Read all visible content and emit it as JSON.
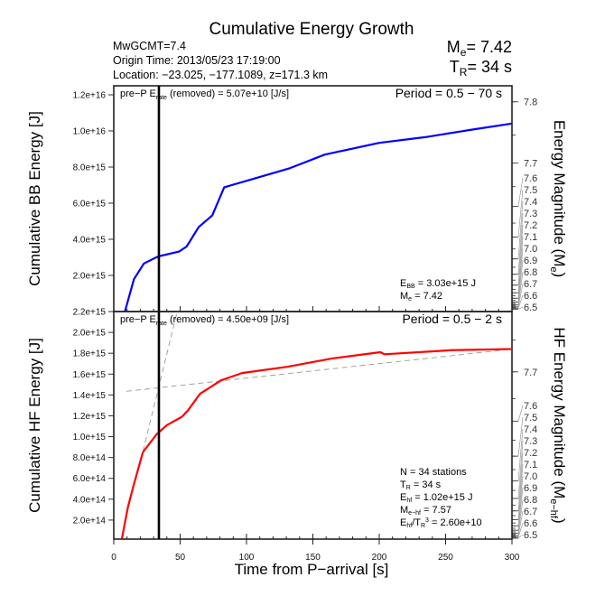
{
  "title": "Cumulative Energy Growth",
  "info": {
    "line1": "MwGCMT=7.4",
    "line2": "Origin Time: 2013/05/23 17:19:00",
    "line3": "Location: −23.025, −177.1089, z=171.3 km"
  },
  "summary": {
    "me_sym": "M",
    "me_sub": "e",
    "me_val": "= 7.42",
    "tr_sym": "T",
    "tr_sub": "R",
    "tr_val": "= 34 s"
  },
  "xlabel": "Time from P−arrival [s]",
  "chart_data": [
    {
      "type": "line",
      "panel": "top",
      "ylabel": "Cumulative BB Energy [J]",
      "ylabel_right": "Energy Magnitude (M",
      "ylabel_right_sub": "e",
      "ylabel_right_end": ")",
      "xlim": [
        0,
        300
      ],
      "ylim": [
        0,
        1.25e+16
      ],
      "xticks": [
        0,
        50,
        100,
        150,
        200,
        250,
        300
      ],
      "yticks": [
        2000000000000000.0,
        4000000000000000.0,
        6000000000000000.0,
        8000000000000000.0,
        1e+16,
        1.2e+16
      ],
      "ytick_labels": [
        "2.0e+15",
        "4.0e+15",
        "6.0e+15",
        "8.0e+15",
        "1.0e+16",
        "1.2e+16"
      ],
      "right_ticks": [
        7.8,
        7.7,
        7.6,
        7.5,
        7.4,
        7.3,
        7.2,
        7.1,
        7.0,
        6.9,
        6.8,
        6.7,
        6.6,
        6.5
      ],
      "right_tick_labels": [
        "7.8",
        "7.7",
        "7.6",
        "7.5",
        "7.4",
        "7.3",
        "7.2",
        "7.1",
        "7.0",
        "6.9",
        "6.8",
        "6.7",
        "6.6",
        "6.5"
      ],
      "color": "#0000ff",
      "x": [
        8.4,
        15.2,
        22.7,
        33.4,
        49.2,
        54.9,
        64,
        74.2,
        83.2,
        102.5,
        132,
        159,
        200,
        236,
        268,
        300
      ],
      "y": [
        0,
        1790000000000000.0,
        2660000000000000.0,
        3050000000000000.0,
        3320000000000000.0,
        3600000000000000.0,
        4680000000000000.0,
        5320000000000000.0,
        6880000000000000.0,
        7290000000000000.0,
        7920000000000000.0,
        8690000000000000.0,
        9340000000000000.0,
        9670000000000000.0,
        1.005e+16,
        1.041e+16
      ],
      "vline_x": 34,
      "annot_top_left": {
        "pre": "pre−P E",
        "sub": "rate",
        "post": " (removed) = 5.07e+10 [J/s]"
      },
      "period": "Period = 0.5 − 70 s",
      "stats": [
        {
          "pre": "E",
          "sub": "BB",
          "post": " = 3.03e+15 J"
        },
        {
          "pre": "M",
          "sub": "e",
          "post": " = 7.42"
        }
      ]
    },
    {
      "type": "line",
      "panel": "bottom",
      "ylabel": "Cumulative HF Energy [J]",
      "ylabel_right": "HF Energy Magnitude (M",
      "ylabel_right_sub": "e−hf",
      "ylabel_right_end": ")",
      "xlim": [
        0,
        300
      ],
      "ylim": [
        0,
        2200000000000000.0
      ],
      "xticks": [
        0,
        50,
        100,
        150,
        200,
        250,
        300
      ],
      "xtick_labels": [
        "0",
        "50",
        "100",
        "150",
        "200",
        "250",
        "300"
      ],
      "yticks": [
        200000000000000.0,
        400000000000000.0,
        600000000000000.0,
        800000000000000.0,
        1000000000000000.0,
        1200000000000000.0,
        1400000000000000.0,
        1600000000000000.0,
        1800000000000000.0,
        2000000000000000.0,
        2200000000000000.0
      ],
      "ytick_labels": [
        "2.0e+14",
        "4.0e+14",
        "6.0e+14",
        "8.0e+14",
        "1.0e+15",
        "1.2e+15",
        "1.4e+15",
        "1.6e+15",
        "1.8e+15",
        "2.0e+15",
        "2.2e+15"
      ],
      "right_ticks": [
        7.7,
        7.6,
        7.5,
        7.4,
        7.3,
        7.2,
        7.1,
        7.0,
        6.9,
        6.8,
        6.7,
        6.6,
        6.5
      ],
      "right_tick_labels": [
        "7.7",
        "7.6",
        "7.5",
        "7.4",
        "7.3",
        "7.2",
        "7.1",
        "7.0",
        "6.9",
        "6.8",
        "6.7",
        "6.6",
        "6.5"
      ],
      "color": "#ff0000",
      "x": [
        6.1,
        10.6,
        15.1,
        21.9,
        32.1,
        40,
        51.3,
        55.8,
        64.9,
        80.8,
        96.6,
        130.6,
        164.6,
        200.9,
        204,
        255,
        298,
        300
      ],
      "y": [
        20000000000000.0,
        320000000000000.0,
        540000000000000.0,
        850000000000000.0,
        1020000000000000.0,
        1110000000000000.0,
        1190000000000000.0,
        1250000000000000.0,
        1410000000000000.0,
        1540000000000000.0,
        1610000000000000.0,
        1670000000000000.0,
        1750000000000000.0,
        1810000000000000.0,
        1790000000000000.0,
        1830000000000000.0,
        1840000000000000.0,
        1840000000000000.0
      ],
      "fit_lines": [
        {
          "x": [
            9.5,
            300
          ],
          "y": [
            1435000000000000.0,
            1840000000000000.0
          ]
        },
        {
          "x": [
            22,
            48
          ],
          "y": [
            860000000000000.0,
            2210000000000000.0
          ]
        }
      ],
      "vline_x": 34,
      "annot_top_left": {
        "pre": "pre−P E",
        "sub": "rate",
        "post": " (removed) = 4.50e+09 [J/s]"
      },
      "period": "Period = 0.5 − 2 s",
      "stats": [
        {
          "pre": "N = 34 stations",
          "sub": "",
          "post": ""
        },
        {
          "pre": "T",
          "sub": "R",
          "post": " = 34  s"
        },
        {
          "pre": "E",
          "sub": "hf",
          "post": " = 1.02e+15 J"
        },
        {
          "pre": "M",
          "sub": "e−hf",
          "post": " = 7.57"
        },
        {
          "pre": "E",
          "sub": "hf",
          "post": "/T",
          "sub2": "R",
          "sup": "3",
          "post2": " =  2.60e+10"
        }
      ]
    }
  ]
}
